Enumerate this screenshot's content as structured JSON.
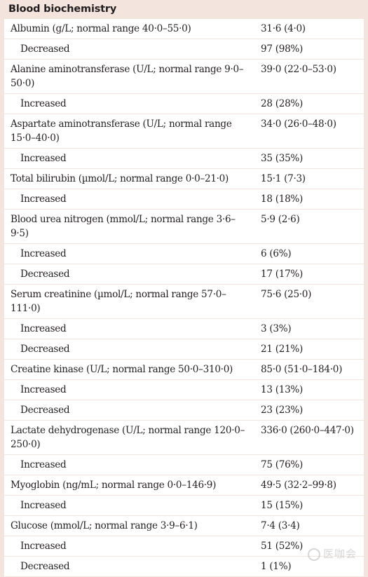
{
  "section_title": "Blood biochemistry",
  "rows": [
    {
      "label": "Albumin (g/L; normal range 40·0–55·0)",
      "value": "31·6 (4·0)",
      "type": "group"
    },
    {
      "label": "Decreased",
      "value": "97 (98%)",
      "type": "sub"
    },
    {
      "label": "Alanine aminotransferase (U/L; normal range 9·0–50·0)",
      "value": "39·0 (22·0–53·0)",
      "type": "group"
    },
    {
      "label": "Increased",
      "value": "28 (28%)",
      "type": "sub"
    },
    {
      "label": "Aspartate aminotransferase (U/L; normal range 15·0–40·0)",
      "value": "34·0 (26·0–48·0)",
      "type": "group"
    },
    {
      "label": "Increased",
      "value": "35 (35%)",
      "type": "sub"
    },
    {
      "label": "Total bilirubin (µmol/L; normal range 0·0–21·0)",
      "value": "15·1 (7·3)",
      "type": "group"
    },
    {
      "label": "Increased",
      "value": "18 (18%)",
      "type": "sub"
    },
    {
      "label": "Blood urea nitrogen (mmol/L; normal range 3·6–9·5)",
      "value": "5·9 (2·6)",
      "type": "group"
    },
    {
      "label": "Increased",
      "value": "6 (6%)",
      "type": "sub"
    },
    {
      "label": "Decreased",
      "value": "17 (17%)",
      "type": "sub"
    },
    {
      "label": "Serum creatinine (µmol/L; normal range 57·0–111·0)",
      "value": "75·6 (25·0)",
      "type": "group"
    },
    {
      "label": "Increased",
      "value": "3 (3%)",
      "type": "sub"
    },
    {
      "label": "Decreased",
      "value": "21 (21%)",
      "type": "sub"
    },
    {
      "label": "Creatine kinase (U/L; normal range 50·0–310·0)",
      "value": "85·0 (51·0–184·0)",
      "type": "group"
    },
    {
      "label": "Increased",
      "value": "13 (13%)",
      "type": "sub"
    },
    {
      "label": "Decreased",
      "value": "23 (23%)",
      "type": "sub"
    },
    {
      "label": "Lactate dehydrogenase (U/L; normal range 120·0–250·0)",
      "value": "336·0 (260·0–447·0)",
      "type": "group"
    },
    {
      "label": "Increased",
      "value": "75 (76%)",
      "type": "sub"
    },
    {
      "label": "Myoglobin (ng/mL; normal range 0·0–146·9)",
      "value": "49·5 (32·2–99·8)",
      "type": "group"
    },
    {
      "label": "Increased",
      "value": "15 (15%)",
      "type": "sub"
    },
    {
      "label": "Glucose (mmol/L; normal range 3·9–6·1)",
      "value": "7·4 (3·4)",
      "type": "group"
    },
    {
      "label": "Increased",
      "value": "51 (52%)",
      "type": "sub"
    },
    {
      "label": "Decreased",
      "value": "1 (1%)",
      "type": "sub"
    }
  ],
  "watermark": {
    "icon": "watermark-logo-icon",
    "text": "医咖会"
  }
}
